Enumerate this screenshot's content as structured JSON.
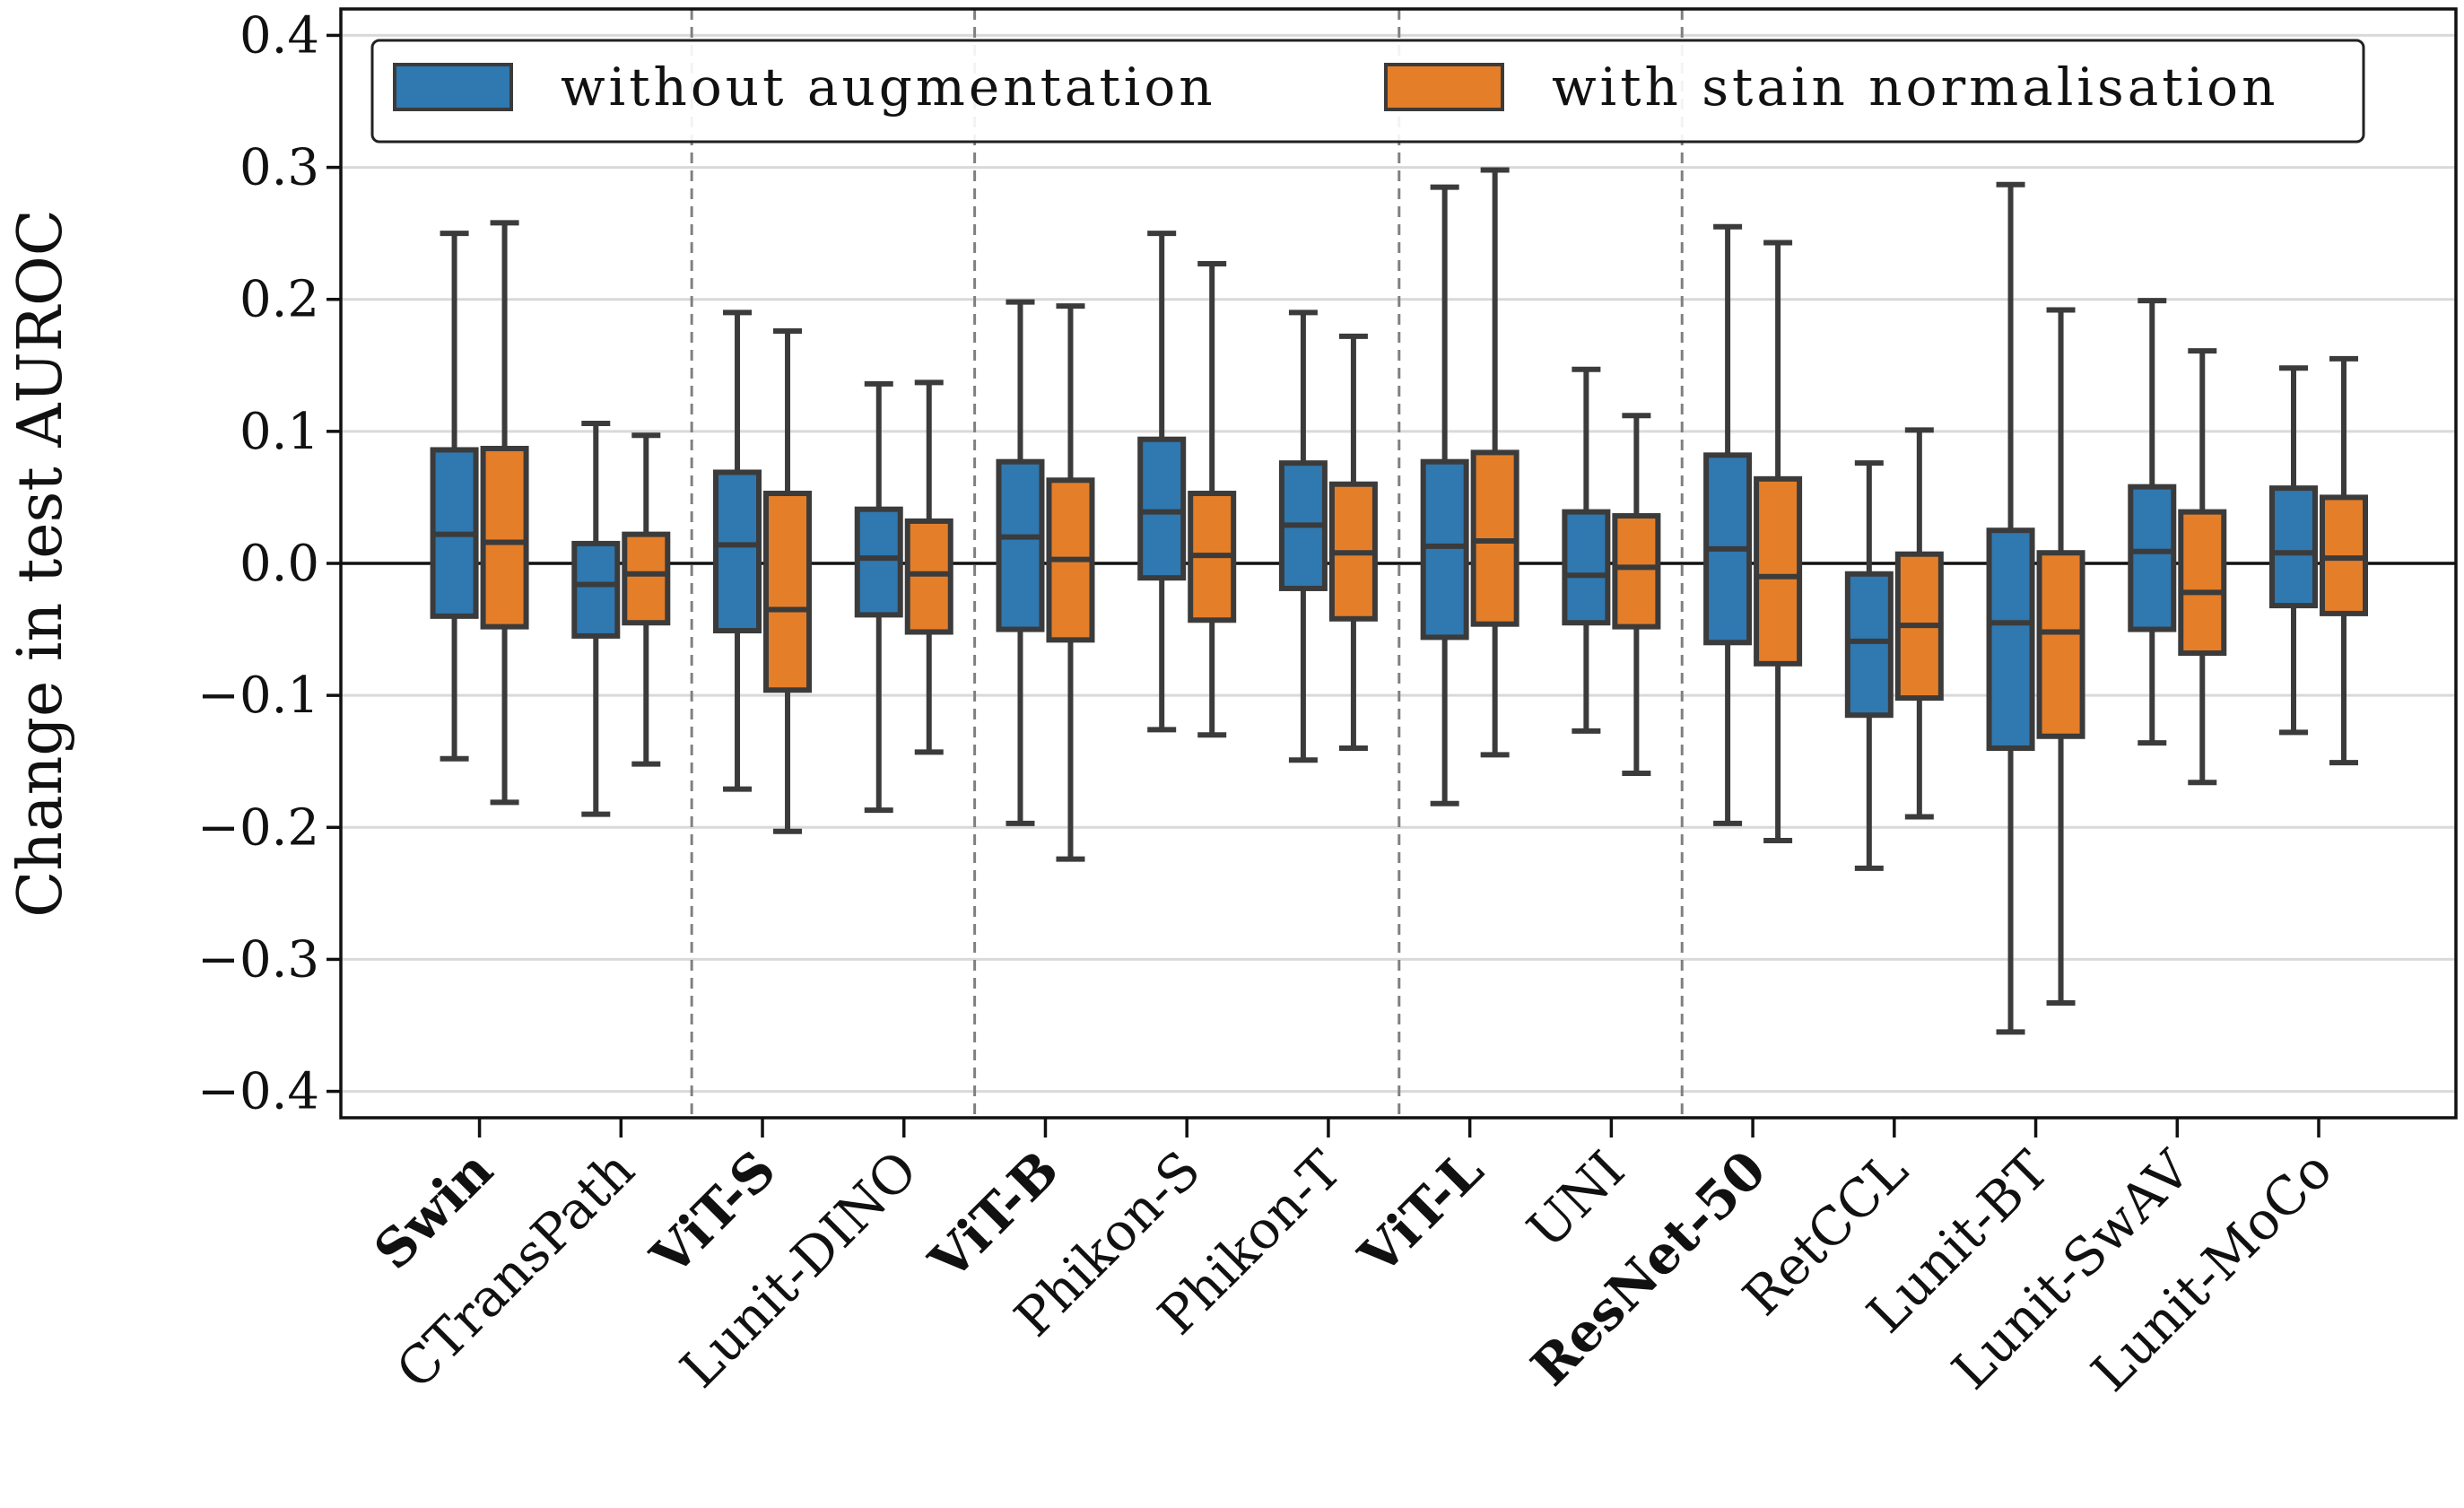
{
  "chart_data": {
    "type": "box",
    "ylabel": "Change in test AUROC",
    "ylim": [
      -0.42,
      0.42
    ],
    "yticks": [
      0.4,
      0.3,
      0.2,
      0.1,
      0.0,
      -0.1,
      -0.2,
      -0.3,
      -0.4
    ],
    "ytick_labels": [
      "0.4",
      "0.3",
      "0.2",
      "0.1",
      "0.0",
      "−0.1",
      "−0.2",
      "−0.3",
      "−0.4"
    ],
    "grid": true,
    "legend_position": "top",
    "categories": [
      {
        "label": "Swin",
        "bold": true
      },
      {
        "label": "CTransPath",
        "bold": false
      },
      {
        "label": "ViT-S",
        "bold": true
      },
      {
        "label": "Lunit-DINO",
        "bold": false
      },
      {
        "label": "ViT-B",
        "bold": true
      },
      {
        "label": "Phikon-S",
        "bold": false
      },
      {
        "label": "Phikon-T",
        "bold": false
      },
      {
        "label": "ViT-L",
        "bold": true
      },
      {
        "label": "UNI",
        "bold": false
      },
      {
        "label": "ResNet-50",
        "bold": true
      },
      {
        "label": "RetCCL",
        "bold": false
      },
      {
        "label": "Lunit-BT",
        "bold": false
      },
      {
        "label": "Lunit-SwAV",
        "bold": false
      },
      {
        "label": "Lunit-MoCo",
        "bold": false
      }
    ],
    "series": [
      {
        "name": "without augmentation",
        "color": "#2f78b0",
        "boxes": [
          {
            "min": -0.148,
            "q1": -0.04,
            "median": 0.022,
            "q3": 0.086,
            "max": 0.25
          },
          {
            "min": -0.19,
            "q1": -0.055,
            "median": -0.016,
            "q3": 0.015,
            "max": 0.106
          },
          {
            "min": -0.171,
            "q1": -0.051,
            "median": 0.014,
            "q3": 0.069,
            "max": 0.19
          },
          {
            "min": -0.187,
            "q1": -0.039,
            "median": 0.004,
            "q3": 0.041,
            "max": 0.136
          },
          {
            "min": -0.197,
            "q1": -0.05,
            "median": 0.02,
            "q3": 0.077,
            "max": 0.198
          },
          {
            "min": -0.126,
            "q1": -0.011,
            "median": 0.039,
            "q3": 0.094,
            "max": 0.25
          },
          {
            "min": -0.149,
            "q1": -0.019,
            "median": 0.029,
            "q3": 0.076,
            "max": 0.19
          },
          {
            "min": -0.182,
            "q1": -0.056,
            "median": 0.013,
            "q3": 0.077,
            "max": 0.285
          },
          {
            "min": -0.127,
            "q1": -0.045,
            "median": -0.009,
            "q3": 0.039,
            "max": 0.147
          },
          {
            "min": -0.197,
            "q1": -0.06,
            "median": 0.011,
            "q3": 0.082,
            "max": 0.255
          },
          {
            "min": -0.231,
            "q1": -0.115,
            "median": -0.059,
            "q3": -0.008,
            "max": 0.076
          },
          {
            "min": -0.355,
            "q1": -0.14,
            "median": -0.045,
            "q3": 0.025,
            "max": 0.287
          },
          {
            "min": -0.136,
            "q1": -0.05,
            "median": 0.009,
            "q3": 0.058,
            "max": 0.199
          },
          {
            "min": -0.128,
            "q1": -0.032,
            "median": 0.008,
            "q3": 0.057,
            "max": 0.148
          }
        ]
      },
      {
        "name": "with stain normalisation",
        "color": "#e57e29",
        "boxes": [
          {
            "min": -0.181,
            "q1": -0.048,
            "median": 0.016,
            "q3": 0.087,
            "max": 0.258
          },
          {
            "min": -0.152,
            "q1": -0.045,
            "median": -0.008,
            "q3": 0.022,
            "max": 0.097
          },
          {
            "min": -0.203,
            "q1": -0.096,
            "median": -0.035,
            "q3": 0.053,
            "max": 0.176
          },
          {
            "min": -0.143,
            "q1": -0.052,
            "median": -0.008,
            "q3": 0.032,
            "max": 0.137
          },
          {
            "min": -0.224,
            "q1": -0.058,
            "median": 0.003,
            "q3": 0.063,
            "max": 0.195
          },
          {
            "min": -0.13,
            "q1": -0.043,
            "median": 0.006,
            "q3": 0.053,
            "max": 0.227
          },
          {
            "min": -0.14,
            "q1": -0.042,
            "median": 0.008,
            "q3": 0.06,
            "max": 0.172
          },
          {
            "min": -0.145,
            "q1": -0.046,
            "median": 0.017,
            "q3": 0.084,
            "max": 0.298
          },
          {
            "min": -0.159,
            "q1": -0.048,
            "median": -0.003,
            "q3": 0.036,
            "max": 0.112
          },
          {
            "min": -0.21,
            "q1": -0.076,
            "median": -0.01,
            "q3": 0.064,
            "max": 0.243
          },
          {
            "min": -0.192,
            "q1": -0.102,
            "median": -0.047,
            "q3": 0.007,
            "max": 0.101
          },
          {
            "min": -0.333,
            "q1": -0.131,
            "median": -0.052,
            "q3": 0.008,
            "max": 0.192
          },
          {
            "min": -0.166,
            "q1": -0.068,
            "median": -0.022,
            "q3": 0.039,
            "max": 0.161
          },
          {
            "min": -0.151,
            "q1": -0.038,
            "median": 0.004,
            "q3": 0.05,
            "max": 0.155
          }
        ]
      }
    ]
  }
}
